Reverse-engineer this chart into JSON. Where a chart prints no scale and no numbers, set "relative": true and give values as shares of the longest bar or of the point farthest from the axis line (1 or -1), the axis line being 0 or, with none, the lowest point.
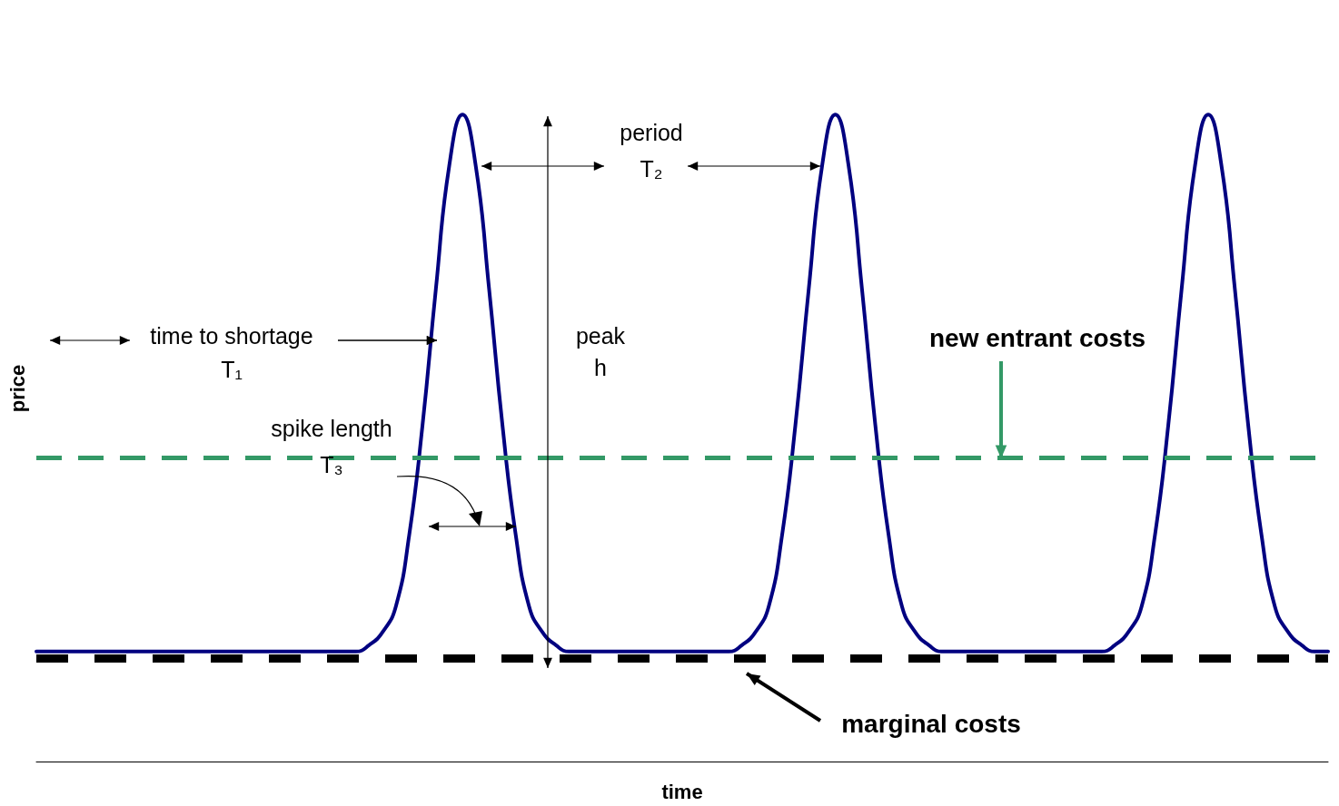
{
  "chart_data": {
    "type": "line",
    "relative": true,
    "xlabel": "time",
    "ylabel": "price",
    "categories": [
      null,
      null,
      null,
      null,
      null,
      null,
      null,
      null,
      null,
      null,
      null,
      null,
      null,
      null,
      null,
      null,
      null,
      null,
      null,
      null,
      null,
      null,
      null,
      null,
      null,
      null,
      null,
      null,
      null,
      null,
      null,
      null,
      null,
      null,
      null,
      null,
      null,
      null,
      null,
      null,
      null,
      null,
      null,
      null,
      null,
      null,
      null,
      null,
      null,
      null,
      null,
      null,
      null,
      null,
      null,
      null,
      null,
      null,
      null,
      null,
      null,
      null,
      null,
      null,
      null,
      null,
      null,
      null,
      null,
      null,
      null,
      null,
      null,
      null,
      null,
      null,
      null,
      null,
      null,
      null,
      null,
      null,
      null,
      null,
      null,
      null,
      null,
      null,
      null,
      null,
      null,
      null,
      null,
      null,
      null,
      null,
      null,
      null
    ],
    "series": [
      {
        "color": "#000080",
        "values": [
          0.17,
          0.17,
          0.17,
          0.17,
          0.17,
          0.17,
          0.17,
          0.17,
          0.17,
          0.17,
          0.17,
          0.17,
          0.17,
          0.17,
          0.17,
          0.17,
          0.17,
          0.17,
          0.17,
          0.17,
          0.17,
          0.17,
          0.17,
          0.17,
          0.17,
          0.18,
          0.2,
          0.24,
          0.35,
          0.52,
          0.73,
          0.92,
          1,
          0.92,
          0.73,
          0.52,
          0.35,
          0.24,
          0.2,
          0.18,
          0.17,
          0.17,
          0.17,
          0.17,
          0.17,
          0.17,
          0.17,
          0.17,
          0.17,
          0.17,
          0.17,
          0.17,
          0.17,
          0.18,
          0.2,
          0.24,
          0.35,
          0.52,
          0.73,
          0.92,
          1,
          0.92,
          0.73,
          0.52,
          0.35,
          0.24,
          0.2,
          0.18,
          0.17,
          0.17,
          0.17,
          0.17,
          0.17,
          0.17,
          0.17,
          0.17,
          0.17,
          0.17,
          0.17,
          0.17,
          0.17,
          0.18,
          0.2,
          0.24,
          0.35,
          0.52,
          0.73,
          0.92,
          1,
          0.92,
          0.73,
          0.52,
          0.35,
          0.24,
          0.2,
          0.18,
          0.17,
          0.17
        ]
      }
    ],
    "ref_lines": [
      {
        "axis": "y",
        "value": 0.47,
        "color": "#339966",
        "line_style": "dashed"
      },
      {
        "axis": "y",
        "value": 0.16,
        "color": "#000000",
        "line_style": "dashed"
      }
    ],
    "annotations": [
      "period T₂",
      "time to shortage T₁",
      "peak h",
      "spike length T₃",
      "new entrant costs",
      "marginal costs"
    ],
    "marker": "none",
    "line_style": "solid"
  }
}
